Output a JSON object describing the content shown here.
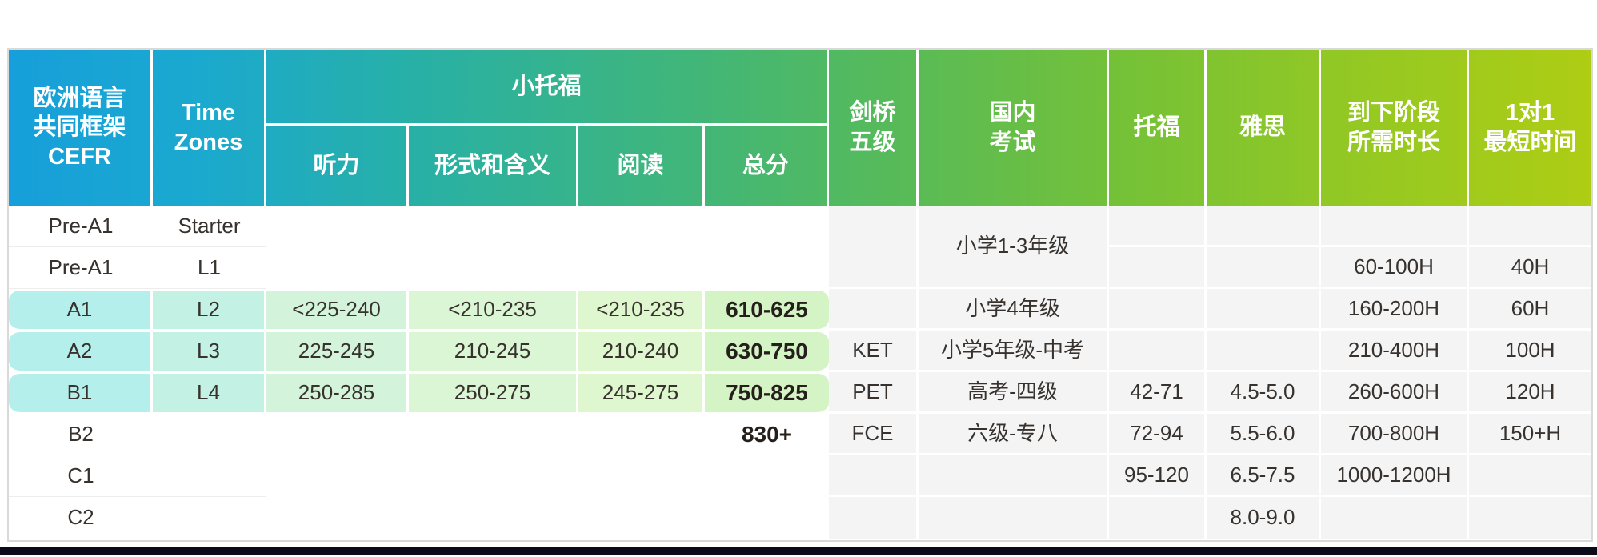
{
  "header": {
    "cefr": "欧洲语言\n共同框架\nCEFR",
    "time_zones": "Time\nZones",
    "toefl_junior": "小托福",
    "sub_listening": "听力",
    "sub_form": "形式和含义",
    "sub_reading": "阅读",
    "sub_total": "总分",
    "cambridge": "剑桥\n五级",
    "domestic": "国内\n考试",
    "toefl": "托福",
    "ielts": "雅思",
    "duration": "到下阶段\n所需时长",
    "one_on_one": "1对1\n最短时间"
  },
  "rows": [
    {
      "cefr": "Pre-A1",
      "tz": "Starter",
      "listening": "",
      "form": "",
      "reading": "",
      "total": "",
      "cambridge": "",
      "domestic": "小学1-3年级",
      "toefl": "",
      "ielts": "",
      "duration": "",
      "one2one": ""
    },
    {
      "cefr": "Pre-A1",
      "tz": "L1",
      "listening": "",
      "form": "",
      "reading": "",
      "total": "",
      "cambridge": "",
      "domestic": "",
      "toefl": "",
      "ielts": "",
      "duration": "60-100H",
      "one2one": "40H"
    },
    {
      "cefr": "A1",
      "tz": "L2",
      "listening": "<225-240",
      "form": "<210-235",
      "reading": "<210-235",
      "total": "610-625",
      "cambridge": "",
      "domestic": "小学4年级",
      "toefl": "",
      "ielts": "",
      "duration": "160-200H",
      "one2one": "60H"
    },
    {
      "cefr": "A2",
      "tz": "L3",
      "listening": "225-245",
      "form": "210-245",
      "reading": "210-240",
      "total": "630-750",
      "cambridge": "KET",
      "domestic": "小学5年级-中考",
      "toefl": "",
      "ielts": "",
      "duration": "210-400H",
      "one2one": "100H"
    },
    {
      "cefr": "B1",
      "tz": "L4",
      "listening": "250-285",
      "form": "250-275",
      "reading": "245-275",
      "total": "750-825",
      "cambridge": "PET",
      "domestic": "高考-四级",
      "toefl": "42-71",
      "ielts": "4.5-5.0",
      "duration": "260-600H",
      "one2one": "120H"
    },
    {
      "cefr": "B2",
      "tz": "",
      "listening": "",
      "form": "",
      "reading": "",
      "total": "830+",
      "cambridge": "FCE",
      "domestic": "六级-专八",
      "toefl": "72-94",
      "ielts": "5.5-6.0",
      "duration": "700-800H",
      "one2one": "150+H"
    },
    {
      "cefr": "C1",
      "tz": "",
      "listening": "",
      "form": "",
      "reading": "",
      "total": "",
      "cambridge": "",
      "domestic": "",
      "toefl": "95-120",
      "ielts": "6.5-7.5",
      "duration": "1000-1200H",
      "one2one": ""
    },
    {
      "cefr": "C2",
      "tz": "",
      "listening": "",
      "form": "",
      "reading": "",
      "total": "",
      "cambridge": "",
      "domestic": "",
      "toefl": "",
      "ielts": "8.0-9.0",
      "duration": "",
      "one2one": ""
    }
  ],
  "colors": {
    "header_gradient_left": "#169fda",
    "header_gradient_right": "#aecd14",
    "highlight_cyan": "#b5efec",
    "highlight_green": "#def7cf",
    "highlight_total_green": "#d5f4c6",
    "gray_cell": "#f4f4f5",
    "bottom_bar": "#0a0a18"
  }
}
